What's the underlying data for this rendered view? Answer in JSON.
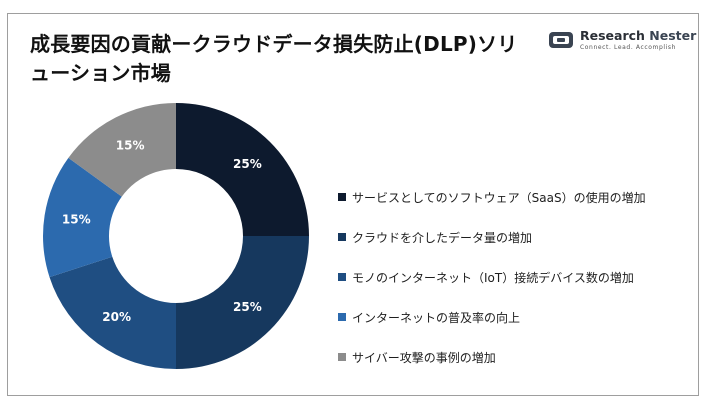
{
  "title": "成長要因の貢献ークラウドデータ損失防止(DLP)ソリューション市場",
  "logo": {
    "name_part1": "Research",
    "name_part2": "Nester",
    "tagline": "Connect. Lead. Accomplish"
  },
  "chart_data": {
    "type": "pie",
    "donut": true,
    "start_angle_deg": 0,
    "direction": "clockwise",
    "legend_position": "right",
    "unit": "%",
    "series": [
      {
        "name": "サービスとしてのソフトウェア（SaaS）の使用の増加",
        "value": 25,
        "color": "#0d1a2e",
        "label": "25%"
      },
      {
        "name": "クラウドを介したデータ量の増加",
        "value": 25,
        "color": "#16385e",
        "label": "25%"
      },
      {
        "name": "モノのインターネット（IoT）接続デバイス数の増加",
        "value": 20,
        "color": "#1f4e82",
        "label": "20%"
      },
      {
        "name": "インターネットの普及率の向上",
        "value": 15,
        "color": "#2c6aae",
        "label": "15%"
      },
      {
        "name": "サイバー攻撃の事例の増加",
        "value": 15,
        "color": "#8c8c8c",
        "label": "15%"
      }
    ]
  }
}
